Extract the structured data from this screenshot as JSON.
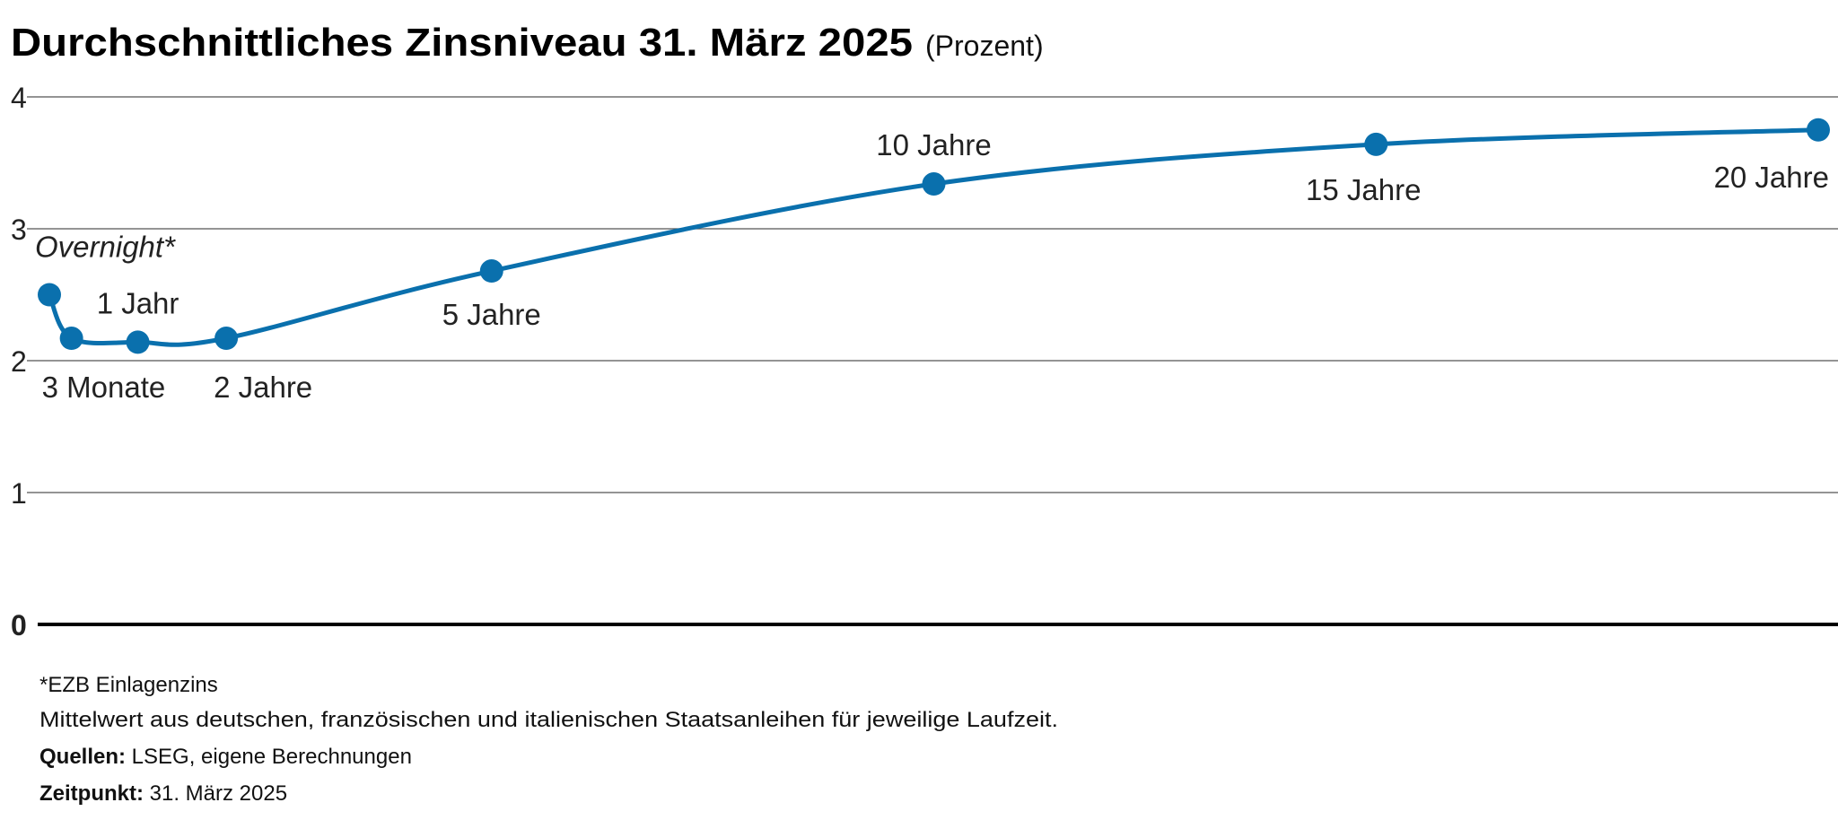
{
  "chart_data": {
    "type": "line",
    "title": "Durchschnittliches Zinsniveau 31. März 2025",
    "unit": "(Prozent)",
    "xlabel": "",
    "ylabel": "",
    "ylim": [
      0,
      4
    ],
    "yticks": [
      "0",
      "1",
      "2",
      "3",
      "4"
    ],
    "grid": true,
    "color": "#0a70ad",
    "series": [
      {
        "name": "Zinsniveau",
        "points": [
          {
            "label": "Overnight*",
            "maturity_years": 0,
            "value": 2.5
          },
          {
            "label": "3 Monate",
            "maturity_years": 0.25,
            "value": 2.17
          },
          {
            "label": "1 Jahr",
            "maturity_years": 1,
            "value": 2.14
          },
          {
            "label": "2 Jahre",
            "maturity_years": 2,
            "value": 2.17
          },
          {
            "label": "5 Jahre",
            "maturity_years": 5,
            "value": 2.68
          },
          {
            "label": "10 Jahre",
            "maturity_years": 10,
            "value": 3.34
          },
          {
            "label": "15 Jahre",
            "maturity_years": 15,
            "value": 3.64
          },
          {
            "label": "20 Jahre",
            "maturity_years": 20,
            "value": 3.75
          }
        ]
      }
    ]
  },
  "footer": {
    "note1": "*EZB Einlagenzins",
    "note2": "Mittelwert aus deutschen, französischen und italienischen Staatsanleihen für jeweilige Laufzeit.",
    "sources_label": "Quellen:",
    "sources": " LSEG, eigene Berechnungen",
    "time_label": "Zeitpunkt:",
    "time": " 31. März 2025"
  }
}
